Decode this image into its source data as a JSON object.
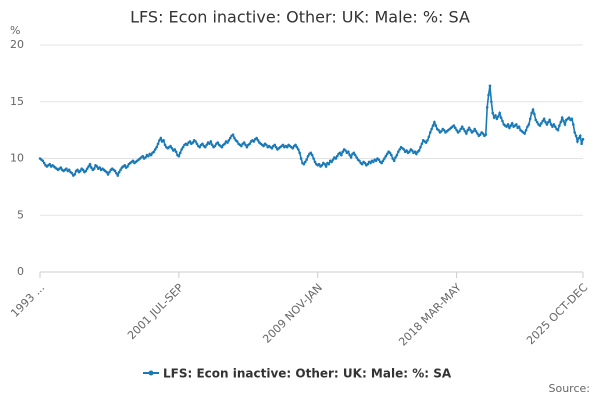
{
  "chart_data": {
    "type": "line",
    "title": "LFS: Econ inactive: Other: UK: Male: %: SA",
    "y_label": "%",
    "source": "Source:",
    "ylim": [
      0,
      20
    ],
    "yticks": [
      0,
      5,
      10,
      15,
      20
    ],
    "grid": true,
    "legend": "bottom",
    "categories": [
      "1993 ...",
      null,
      null,
      null,
      null,
      null,
      null,
      null,
      null,
      null,
      null,
      null,
      null,
      null,
      null,
      null,
      null,
      null,
      null,
      null,
      null,
      null,
      null,
      null,
      null,
      null,
      null,
      null,
      null,
      null,
      null,
      null,
      null,
      null,
      null,
      null,
      null,
      null,
      null,
      null,
      null,
      null,
      null,
      null,
      null,
      null,
      null,
      null,
      null,
      null,
      null,
      null,
      null,
      null,
      null,
      null,
      null,
      null,
      null,
      null,
      null,
      null,
      null,
      null,
      null,
      null,
      null,
      null,
      null,
      null,
      null,
      null,
      null,
      null,
      null,
      null,
      null,
      null,
      null,
      null,
      null,
      null,
      null,
      null,
      null,
      null,
      null,
      null,
      null,
      null,
      null,
      null,
      null,
      null,
      null,
      null,
      null,
      null,
      null,
      null,
      "2001 JUL-SEP",
      null,
      null,
      null,
      null,
      null,
      null,
      null,
      null,
      null,
      null,
      null,
      null,
      null,
      null,
      null,
      null,
      null,
      null,
      null,
      null,
      null,
      null,
      null,
      null,
      null,
      null,
      null,
      null,
      null,
      null,
      null,
      null,
      null,
      null,
      null,
      null,
      null,
      null,
      null,
      null,
      null,
      null,
      null,
      null,
      null,
      null,
      null,
      null,
      null,
      null,
      null,
      null,
      null,
      null,
      null,
      null,
      null,
      null,
      null,
      null,
      null,
      null,
      null,
      null,
      null,
      null,
      null,
      null,
      null,
      null,
      null,
      null,
      null,
      null,
      null,
      null,
      null,
      null,
      null,
      null,
      null,
      null,
      null,
      null,
      null,
      null,
      null,
      null,
      null,
      null,
      null,
      null,
      null,
      null,
      null,
      null,
      null,
      null,
      null,
      "2009 NOV-JAN",
      null,
      null,
      null,
      null,
      null,
      null,
      null,
      null,
      null,
      null,
      null,
      null,
      null,
      null,
      null,
      null,
      null,
      null,
      null,
      null,
      null,
      null,
      null,
      null,
      null,
      null,
      null,
      null,
      null,
      null,
      null,
      null,
      null,
      null,
      null,
      null,
      null,
      null,
      null,
      null,
      null,
      null,
      null,
      null,
      null,
      null,
      null,
      null,
      null,
      null,
      null,
      null,
      null,
      null,
      null,
      null,
      null,
      null,
      null,
      null,
      null,
      null,
      null,
      null,
      null,
      null,
      null,
      null,
      null,
      null,
      null,
      null,
      null,
      null,
      null,
      null,
      null,
      null,
      null,
      null,
      null,
      null,
      null,
      null,
      null,
      null,
      null,
      null,
      null,
      null,
      null,
      null,
      null,
      null,
      null,
      null,
      null,
      null,
      null,
      "2018 MAR-MAY",
      null,
      null,
      null,
      null,
      null,
      null,
      null,
      null,
      null,
      null,
      null,
      null,
      null,
      null,
      null,
      null,
      null,
      null,
      null,
      null,
      null,
      null,
      null,
      null,
      null,
      null,
      null,
      null,
      null,
      null,
      null,
      null,
      null,
      null,
      null,
      null,
      null,
      null,
      null,
      null,
      null,
      null,
      null,
      null,
      null,
      null,
      null,
      null,
      null,
      null,
      null,
      null,
      null,
      null,
      null,
      null,
      null,
      null,
      null,
      null,
      null,
      null,
      null,
      null,
      null,
      null,
      null,
      null,
      null,
      null,
      null,
      null,
      null,
      null,
      null,
      null,
      null,
      null,
      null,
      null,
      null,
      null,
      null,
      null,
      null,
      null,
      null,
      null,
      null,
      null,
      "2025 OCT-DEC"
    ],
    "series": [
      {
        "name": "LFS: Econ inactive: Other: UK: Male: %: SA",
        "color": "#1a7ab8",
        "values": [
          10.0,
          9.9,
          9.8,
          9.6,
          9.4,
          9.3,
          9.4,
          9.5,
          9.3,
          9.4,
          9.3,
          9.2,
          9.1,
          9.0,
          9.1,
          9.2,
          9.0,
          8.9,
          9.0,
          9.1,
          8.9,
          9.0,
          8.8,
          8.7,
          8.5,
          8.6,
          8.9,
          9.0,
          8.8,
          8.9,
          9.1,
          9.0,
          8.8,
          8.9,
          9.1,
          9.3,
          9.5,
          9.2,
          9.0,
          9.1,
          9.4,
          9.3,
          9.1,
          9.2,
          9.0,
          9.1,
          9.0,
          8.9,
          8.8,
          8.6,
          8.8,
          9.0,
          9.1,
          9.0,
          8.9,
          8.7,
          8.5,
          8.8,
          9.0,
          9.2,
          9.3,
          9.4,
          9.2,
          9.3,
          9.5,
          9.6,
          9.7,
          9.8,
          9.6,
          9.7,
          9.8,
          9.9,
          10.0,
          10.1,
          10.2,
          10.0,
          10.1,
          10.3,
          10.2,
          10.4,
          10.3,
          10.5,
          10.6,
          10.8,
          11.0,
          11.3,
          11.6,
          11.8,
          11.5,
          11.6,
          11.2,
          11.0,
          10.9,
          11.0,
          11.1,
          10.9,
          10.7,
          10.8,
          10.6,
          10.3,
          10.2,
          10.5,
          10.8,
          11.0,
          11.2,
          11.3,
          11.2,
          11.4,
          11.5,
          11.3,
          11.4,
          11.6,
          11.5,
          11.3,
          11.1,
          11.0,
          11.2,
          11.3,
          11.1,
          11.0,
          11.2,
          11.4,
          11.3,
          11.5,
          11.2,
          11.0,
          11.1,
          11.3,
          11.4,
          11.2,
          11.1,
          11.0,
          11.2,
          11.3,
          11.5,
          11.4,
          11.6,
          11.8,
          12.0,
          12.1,
          11.8,
          11.6,
          11.5,
          11.3,
          11.2,
          11.1,
          11.3,
          11.4,
          11.2,
          11.0,
          11.2,
          11.3,
          11.5,
          11.6,
          11.5,
          11.7,
          11.8,
          11.6,
          11.4,
          11.3,
          11.2,
          11.1,
          11.3,
          11.2,
          11.0,
          11.1,
          11.0,
          10.9,
          11.1,
          11.2,
          11.0,
          10.8,
          10.9,
          11.0,
          11.1,
          11.2,
          11.0,
          11.1,
          11.0,
          11.2,
          11.1,
          11.0,
          10.9,
          11.1,
          11.2,
          11.0,
          10.8,
          10.5,
          10.0,
          9.6,
          9.5,
          9.7,
          9.9,
          10.2,
          10.4,
          10.5,
          10.3,
          10.0,
          9.7,
          9.5,
          9.4,
          9.5,
          9.3,
          9.4,
          9.6,
          9.5,
          9.3,
          9.6,
          9.5,
          9.8,
          9.7,
          9.9,
          10.1,
          10.0,
          10.2,
          10.4,
          10.5,
          10.3,
          10.6,
          10.8,
          10.7,
          10.5,
          10.6,
          10.3,
          10.1,
          10.4,
          10.5,
          10.3,
          10.1,
          9.9,
          9.8,
          9.6,
          9.5,
          9.7,
          9.6,
          9.4,
          9.5,
          9.7,
          9.6,
          9.8,
          9.7,
          9.9,
          9.8,
          10.0,
          9.9,
          9.7,
          9.6,
          9.8,
          10.0,
          10.2,
          10.4,
          10.6,
          10.5,
          10.3,
          10.0,
          9.8,
          10.1,
          10.3,
          10.6,
          10.8,
          11.0,
          10.9,
          10.8,
          10.6,
          10.7,
          10.5,
          10.6,
          10.8,
          10.7,
          10.5,
          10.6,
          10.4,
          10.6,
          10.7,
          11.0,
          11.3,
          11.6,
          11.5,
          11.4,
          11.6,
          11.9,
          12.3,
          12.6,
          12.9,
          13.2,
          12.9,
          12.6,
          12.5,
          12.3,
          12.4,
          12.6,
          12.5,
          12.3,
          12.4,
          12.5,
          12.6,
          12.7,
          12.8,
          12.9,
          12.7,
          12.5,
          12.3,
          12.4,
          12.6,
          12.8,
          12.6,
          12.4,
          12.2,
          12.5,
          12.7,
          12.5,
          12.3,
          12.4,
          12.6,
          12.4,
          12.2,
          12.0,
          12.1,
          12.3,
          12.2,
          12.0,
          12.1,
          14.5,
          15.6,
          16.4,
          15.0,
          14.0,
          13.6,
          13.8,
          13.5,
          13.7,
          14.0,
          13.6,
          13.3,
          13.0,
          12.9,
          12.8,
          13.0,
          12.7,
          12.9,
          13.1,
          12.8,
          12.9,
          13.0,
          12.7,
          12.8,
          12.5,
          12.4,
          12.3,
          12.2,
          12.5,
          12.8,
          13.0,
          13.5,
          14.0,
          14.3,
          13.9,
          13.4,
          13.2,
          13.0,
          12.9,
          13.1,
          13.3,
          13.5,
          13.2,
          13.0,
          13.2,
          13.4,
          13.0,
          12.8,
          13.0,
          12.8,
          12.6,
          12.5,
          12.9,
          13.2,
          13.6,
          13.3,
          13.0,
          13.4,
          13.5,
          13.6,
          13.4,
          13.5,
          13.0,
          12.3,
          12.0,
          11.5,
          11.8,
          12.0,
          11.3,
          11.7
        ]
      }
    ]
  }
}
